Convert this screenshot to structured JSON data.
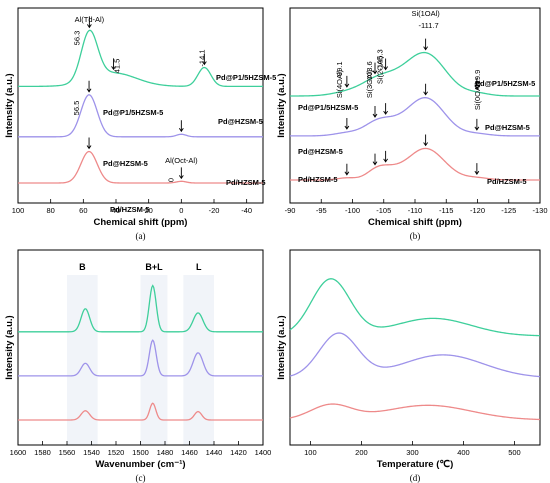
{
  "colors": {
    "green": "#3ecf9b",
    "purple": "#9e93ea",
    "red": "#ee8a8a"
  },
  "chart_data": [
    {
      "id": "a",
      "type": "line",
      "panel_label": "(a)",
      "xlabel": "Chemical shift (ppm)",
      "ylabel": "Intensity (a.u.)",
      "xlim": [
        100,
        -50
      ],
      "x_ticks": [
        100,
        80,
        60,
        40,
        20,
        0,
        -20,
        -40
      ],
      "series": [
        {
          "name": "Pd@P1/5HZSM-5",
          "color": "green",
          "offset": 2.3,
          "peaks": [
            [
              56.3,
              1.15,
              5
            ],
            [
              41.5,
              0.32,
              14
            ],
            [
              -14.1,
              0.45,
              4
            ]
          ]
        },
        {
          "name": "Pd@HZSM-5",
          "color": "purple",
          "offset": 1.1,
          "peaks": [
            [
              56.5,
              1.0,
              5
            ],
            [
              0,
              0.06,
              3
            ]
          ]
        },
        {
          "name": "Pd/HZSM-5",
          "color": "red",
          "offset": 0.0,
          "peaks": [
            [
              56.5,
              0.75,
              5
            ],
            [
              0,
              0.04,
              3
            ]
          ]
        }
      ],
      "annotations": [
        {
          "text": "Al(Td-Al)",
          "x": 56.3
        },
        {
          "text": "56.3",
          "x": 56.3
        },
        {
          "text": "41.5",
          "x": 41.5
        },
        {
          "text": "-14.1",
          "x": -14.1
        },
        {
          "text": "56.5",
          "x": 56.5
        },
        {
          "text": "Al(Oct-Al)",
          "x": 0
        },
        {
          "text": "0",
          "x": 0
        }
      ]
    },
    {
      "id": "b",
      "type": "line",
      "panel_label": "(b)",
      "xlabel": "Chemical shift (ppm)",
      "ylabel": "Intensity (a.u.)",
      "xlim": [
        -90,
        -130
      ],
      "x_ticks": [
        -90,
        -95,
        -100,
        -105,
        -110,
        -115,
        -120,
        -125,
        -130
      ],
      "series": [
        {
          "name": "Pd@P1/5HZSM-5",
          "color": "green",
          "offset": 2.0,
          "peaks": [
            [
              -111.7,
              1.0,
              3.2
            ],
            [
              -105.3,
              0.3,
              3.0
            ],
            [
              -103.6,
              0.15,
              2.5
            ],
            [
              -99.1,
              0.08,
              2.5
            ],
            [
              -119.9,
              0.06,
              2.0
            ]
          ]
        },
        {
          "name": "Pd@HZSM-5",
          "color": "purple",
          "offset": 1.05,
          "peaks": [
            [
              -111.7,
              0.9,
              3.0
            ],
            [
              -105.3,
              0.25,
              2.5
            ],
            [
              -103.6,
              0.15,
              2.0
            ],
            [
              -99.1,
              0.07,
              2.0
            ],
            [
              -119.9,
              0.05,
              2.0
            ]
          ]
        },
        {
          "name": "Pd/HZSM-5",
          "color": "red",
          "offset": 0.0,
          "peaks": [
            [
              -111.7,
              0.75,
              3.0
            ],
            [
              -105.3,
              0.22,
              2.0
            ],
            [
              -103.6,
              0.12,
              1.5
            ],
            [
              -99.1,
              0.05,
              1.5
            ],
            [
              -119.9,
              0.05,
              2.0
            ]
          ]
        }
      ],
      "annotations": [
        {
          "text": "Si(1OAl)",
          "x": -111.7
        },
        {
          "text": "-111.7",
          "x": -111.7
        },
        {
          "text": "-99.1",
          "x": -99.1
        },
        {
          "text": "Si(4OAl)",
          "x": -99.1
        },
        {
          "text": "-103.6",
          "x": -103.6
        },
        {
          "text": "Si(3OAl)",
          "x": -103.6
        },
        {
          "text": "-105.3",
          "x": -105.3
        },
        {
          "text": "Si(2OAl)",
          "x": -105.3
        },
        {
          "text": "-119.9",
          "x": -119.9
        },
        {
          "text": "Si(0OAl)",
          "x": -119.9
        }
      ]
    },
    {
      "id": "c",
      "type": "line",
      "panel_label": "(c)",
      "xlabel": "Wavenumber (cm⁻¹)",
      "ylabel": "Intensity (a.u.)",
      "xlim": [
        1600,
        1400
      ],
      "x_ticks": [
        1600,
        1580,
        1560,
        1540,
        1520,
        1500,
        1480,
        1460,
        1440,
        1420,
        1400
      ],
      "bands": [
        {
          "label": "B",
          "x": [
            1560,
            1535
          ]
        },
        {
          "label": "B+L",
          "x": [
            1500,
            1478
          ]
        },
        {
          "label": "L",
          "x": [
            1465,
            1440
          ]
        }
      ],
      "series": [
        {
          "name": "Pd@P1/5HZSM-5",
          "color": "green",
          "offset": 2.1,
          "peaks": [
            [
              1545,
              0.55,
              3.5
            ],
            [
              1490,
              1.1,
              2.8
            ],
            [
              1453,
              0.45,
              4
            ]
          ]
        },
        {
          "name": "Pd@HZSM-5",
          "color": "purple",
          "offset": 1.05,
          "peaks": [
            [
              1545,
              0.3,
              3.5
            ],
            [
              1490,
              0.85,
              2.8
            ],
            [
              1453,
              0.55,
              4
            ]
          ]
        },
        {
          "name": "Pd/HZSM-5",
          "color": "red",
          "offset": 0.0,
          "peaks": [
            [
              1545,
              0.22,
              3.5
            ],
            [
              1490,
              0.4,
              2.5
            ],
            [
              1453,
              0.2,
              3
            ]
          ]
        }
      ]
    },
    {
      "id": "d",
      "type": "line",
      "panel_label": "(d)",
      "xlabel": "Temperature (℃)",
      "ylabel": "Intensity (a.u.)",
      "xlim": [
        60,
        550
      ],
      "x_ticks": [
        100,
        200,
        300,
        400,
        500
      ],
      "series": [
        {
          "name": "Pd@P1/5HZSM-5",
          "color": "green",
          "offset": 2.0,
          "peaks": [
            [
              140,
              1.35,
              38
            ],
            [
              340,
              0.42,
              75
            ]
          ]
        },
        {
          "name": "Pd@HZSM-5",
          "color": "purple",
          "offset": 1.0,
          "peaks": [
            [
              155,
              1.05,
              38
            ],
            [
              360,
              0.55,
              80
            ]
          ]
        },
        {
          "name": "Pd/HZSM-5",
          "color": "red",
          "offset": 0.0,
          "peaks": [
            [
              140,
              0.35,
              40
            ],
            [
              330,
              0.35,
              85
            ]
          ]
        }
      ]
    }
  ]
}
